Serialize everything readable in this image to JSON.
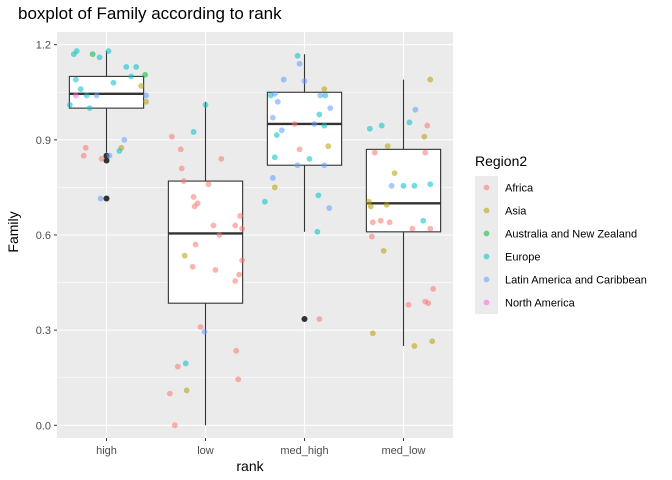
{
  "chart_data": {
    "type": "boxplot",
    "title": "boxplot of Family according to rank",
    "xlabel": "rank",
    "ylabel": "Family",
    "categories": [
      "high",
      "low",
      "med_high",
      "med_low"
    ],
    "yticks": [
      "0.0",
      "0.3",
      "0.6",
      "0.9",
      "1.2"
    ],
    "ylim": [
      -0.04,
      1.24
    ],
    "grid": true,
    "legend": {
      "title": "Region2",
      "position": "right",
      "entries": [
        {
          "name": "Africa",
          "color": "#F8766D"
        },
        {
          "name": "Asia",
          "color": "#B79F00"
        },
        {
          "name": "Australia and New Zealand",
          "color": "#00BA38"
        },
        {
          "name": "Europe",
          "color": "#00BFC4"
        },
        {
          "name": "Latin America and Caribbean",
          "color": "#619CFF"
        },
        {
          "name": "North America",
          "color": "#F564E3"
        }
      ]
    },
    "boxes": [
      {
        "category": "high",
        "whisker_low": 0.86,
        "q1": 1.0,
        "median": 1.045,
        "q3": 1.1,
        "whisker_high": 1.18,
        "outliers": [
          0.85,
          0.835,
          0.715
        ]
      },
      {
        "category": "low",
        "whisker_low": 0.0,
        "q1": 0.385,
        "median": 0.605,
        "q3": 0.77,
        "whisker_high": 1.02,
        "outliers": []
      },
      {
        "category": "med_high",
        "whisker_low": 0.61,
        "q1": 0.82,
        "median": 0.95,
        "q3": 1.05,
        "whisker_high": 1.17,
        "outliers": [
          0.335
        ]
      },
      {
        "category": "med_low",
        "whisker_low": 0.25,
        "q1": 0.61,
        "median": 0.7,
        "q3": 0.87,
        "whisker_high": 1.09,
        "outliers": []
      }
    ],
    "points": [
      {
        "category": "high",
        "x_offset": -0.33,
        "y": 1.17,
        "region": "Europe"
      },
      {
        "category": "high",
        "x_offset": -0.3,
        "y": 1.18,
        "region": "Europe"
      },
      {
        "category": "high",
        "x_offset": -0.14,
        "y": 1.17,
        "region": "Australia and New Zealand"
      },
      {
        "category": "high",
        "x_offset": -0.07,
        "y": 1.16,
        "region": "Europe"
      },
      {
        "category": "high",
        "x_offset": 0.02,
        "y": 1.18,
        "region": "Europe"
      },
      {
        "category": "high",
        "x_offset": 0.2,
        "y": 1.13,
        "region": "Europe"
      },
      {
        "category": "high",
        "x_offset": 0.3,
        "y": 1.13,
        "region": "Europe"
      },
      {
        "category": "high",
        "x_offset": 0.39,
        "y": 1.105,
        "region": "Australia and New Zealand"
      },
      {
        "category": "high",
        "x_offset": 0.25,
        "y": 1.1,
        "region": "Europe"
      },
      {
        "category": "high",
        "x_offset": -0.31,
        "y": 1.09,
        "region": "Europe"
      },
      {
        "category": "high",
        "x_offset": 0.07,
        "y": 1.08,
        "region": "Europe"
      },
      {
        "category": "high",
        "x_offset": 0.35,
        "y": 1.07,
        "region": "Asia"
      },
      {
        "category": "high",
        "x_offset": -0.26,
        "y": 1.06,
        "region": "Europe"
      },
      {
        "category": "high",
        "x_offset": -0.2,
        "y": 1.04,
        "region": "Europe"
      },
      {
        "category": "high",
        "x_offset": -0.1,
        "y": 1.04,
        "region": "Latin America and Caribbean"
      },
      {
        "category": "high",
        "x_offset": -0.31,
        "y": 1.04,
        "region": "North America"
      },
      {
        "category": "high",
        "x_offset": 0.4,
        "y": 1.04,
        "region": "Latin America and Caribbean"
      },
      {
        "category": "high",
        "x_offset": -0.37,
        "y": 1.01,
        "region": "Europe"
      },
      {
        "category": "high",
        "x_offset": -0.17,
        "y": 1.0,
        "region": "Europe"
      },
      {
        "category": "high",
        "x_offset": 0.4,
        "y": 1.02,
        "region": "Asia"
      },
      {
        "category": "high",
        "x_offset": 0.18,
        "y": 0.9,
        "region": "Latin America and Caribbean"
      },
      {
        "category": "high",
        "x_offset": -0.21,
        "y": 0.875,
        "region": "Africa"
      },
      {
        "category": "high",
        "x_offset": 0.15,
        "y": 0.875,
        "region": "Asia"
      },
      {
        "category": "high",
        "x_offset": 0.13,
        "y": 0.865,
        "region": "Europe"
      },
      {
        "category": "high",
        "x_offset": -0.23,
        "y": 0.85,
        "region": "Africa"
      },
      {
        "category": "high",
        "x_offset": -0.05,
        "y": 0.84,
        "region": "Africa"
      },
      {
        "category": "high",
        "x_offset": 0.03,
        "y": 0.85,
        "region": "Latin America and Caribbean"
      },
      {
        "category": "high",
        "x_offset": -0.06,
        "y": 0.715,
        "region": "Latin America and Caribbean"
      },
      {
        "category": "low",
        "x_offset": -0.34,
        "y": 0.91,
        "region": "Africa"
      },
      {
        "category": "low",
        "x_offset": -0.12,
        "y": 0.925,
        "region": "Europe"
      },
      {
        "category": "low",
        "x_offset": 0.0,
        "y": 1.01,
        "region": "Europe"
      },
      {
        "category": "low",
        "x_offset": -0.25,
        "y": 0.87,
        "region": "Africa"
      },
      {
        "category": "low",
        "x_offset": 0.16,
        "y": 0.84,
        "region": "Africa"
      },
      {
        "category": "low",
        "x_offset": -0.24,
        "y": 0.81,
        "region": "Africa"
      },
      {
        "category": "low",
        "x_offset": -0.22,
        "y": 0.77,
        "region": "Africa"
      },
      {
        "category": "low",
        "x_offset": 0.03,
        "y": 0.76,
        "region": "Africa"
      },
      {
        "category": "low",
        "x_offset": -0.12,
        "y": 0.72,
        "region": "Africa"
      },
      {
        "category": "low",
        "x_offset": -0.08,
        "y": 0.7,
        "region": "Africa"
      },
      {
        "category": "low",
        "x_offset": -0.11,
        "y": 0.69,
        "region": "Africa"
      },
      {
        "category": "low",
        "x_offset": 0.35,
        "y": 0.66,
        "region": "Africa"
      },
      {
        "category": "low",
        "x_offset": 0.08,
        "y": 0.63,
        "region": "Africa"
      },
      {
        "category": "low",
        "x_offset": 0.3,
        "y": 0.63,
        "region": "Africa"
      },
      {
        "category": "low",
        "x_offset": 0.37,
        "y": 0.62,
        "region": "Africa"
      },
      {
        "category": "low",
        "x_offset": 0.14,
        "y": 0.6,
        "region": "Africa"
      },
      {
        "category": "low",
        "x_offset": -0.1,
        "y": 0.57,
        "region": "Africa"
      },
      {
        "category": "low",
        "x_offset": -0.21,
        "y": 0.535,
        "region": "Asia"
      },
      {
        "category": "low",
        "x_offset": 0.37,
        "y": 0.52,
        "region": "Africa"
      },
      {
        "category": "low",
        "x_offset": -0.13,
        "y": 0.5,
        "region": "Africa"
      },
      {
        "category": "low",
        "x_offset": 0.1,
        "y": 0.49,
        "region": "Africa"
      },
      {
        "category": "low",
        "x_offset": 0.34,
        "y": 0.475,
        "region": "Africa"
      },
      {
        "category": "low",
        "x_offset": 0.3,
        "y": 0.455,
        "region": "Africa"
      },
      {
        "category": "low",
        "x_offset": -0.05,
        "y": 0.31,
        "region": "Africa"
      },
      {
        "category": "low",
        "x_offset": -0.01,
        "y": 0.295,
        "region": "Latin America and Caribbean"
      },
      {
        "category": "low",
        "x_offset": 0.31,
        "y": 0.235,
        "region": "Africa"
      },
      {
        "category": "low",
        "x_offset": -0.2,
        "y": 0.195,
        "region": "Europe"
      },
      {
        "category": "low",
        "x_offset": -0.28,
        "y": 0.185,
        "region": "Africa"
      },
      {
        "category": "low",
        "x_offset": 0.33,
        "y": 0.145,
        "region": "Africa"
      },
      {
        "category": "low",
        "x_offset": -0.19,
        "y": 0.11,
        "region": "Asia"
      },
      {
        "category": "low",
        "x_offset": -0.36,
        "y": 0.1,
        "region": "Africa"
      },
      {
        "category": "low",
        "x_offset": -0.31,
        "y": 0.0,
        "region": "Africa"
      },
      {
        "category": "med_high",
        "x_offset": -0.05,
        "y": 1.14,
        "region": "Latin America and Caribbean"
      },
      {
        "category": "med_high",
        "x_offset": -0.07,
        "y": 1.165,
        "region": "Europe"
      },
      {
        "category": "med_high",
        "x_offset": -0.21,
        "y": 1.09,
        "region": "Latin America and Caribbean"
      },
      {
        "category": "med_high",
        "x_offset": 0.0,
        "y": 1.085,
        "region": "Latin America and Caribbean"
      },
      {
        "category": "med_high",
        "x_offset": -0.34,
        "y": 1.04,
        "region": "Europe"
      },
      {
        "category": "med_high",
        "x_offset": -0.3,
        "y": 1.045,
        "region": "Latin America and Caribbean"
      },
      {
        "category": "med_high",
        "x_offset": -0.27,
        "y": 1.02,
        "region": "Latin America and Caribbean"
      },
      {
        "category": "med_high",
        "x_offset": 0.16,
        "y": 1.04,
        "region": "Latin America and Caribbean"
      },
      {
        "category": "med_high",
        "x_offset": 0.2,
        "y": 1.06,
        "region": "Asia"
      },
      {
        "category": "med_high",
        "x_offset": 0.21,
        "y": 1.04,
        "region": "Europe"
      },
      {
        "category": "med_high",
        "x_offset": 0.26,
        "y": 1.0,
        "region": "Latin America and Caribbean"
      },
      {
        "category": "med_high",
        "x_offset": 0.15,
        "y": 0.98,
        "region": "Europe"
      },
      {
        "category": "med_high",
        "x_offset": -0.32,
        "y": 0.97,
        "region": "Latin America and Caribbean"
      },
      {
        "category": "med_high",
        "x_offset": 0.1,
        "y": 0.95,
        "region": "Latin America and Caribbean"
      },
      {
        "category": "med_high",
        "x_offset": -0.1,
        "y": 0.95,
        "region": "Africa"
      },
      {
        "category": "med_high",
        "x_offset": 0.2,
        "y": 0.945,
        "region": "Europe"
      },
      {
        "category": "med_high",
        "x_offset": -0.23,
        "y": 0.93,
        "region": "Latin America and Caribbean"
      },
      {
        "category": "med_high",
        "x_offset": -0.28,
        "y": 0.915,
        "region": "Europe"
      },
      {
        "category": "med_high",
        "x_offset": 0.24,
        "y": 0.88,
        "region": "Asia"
      },
      {
        "category": "med_high",
        "x_offset": -0.05,
        "y": 0.87,
        "region": "Africa"
      },
      {
        "category": "med_high",
        "x_offset": -0.3,
        "y": 0.845,
        "region": "Europe"
      },
      {
        "category": "med_high",
        "x_offset": 0.05,
        "y": 0.84,
        "region": "Europe"
      },
      {
        "category": "med_high",
        "x_offset": -0.07,
        "y": 0.82,
        "region": "Latin America and Caribbean"
      },
      {
        "category": "med_high",
        "x_offset": 0.2,
        "y": 0.82,
        "region": "Latin America and Caribbean"
      },
      {
        "category": "med_high",
        "x_offset": -0.32,
        "y": 0.78,
        "region": "Latin America and Caribbean"
      },
      {
        "category": "med_high",
        "x_offset": -0.3,
        "y": 0.75,
        "region": "Asia"
      },
      {
        "category": "med_high",
        "x_offset": 0.14,
        "y": 0.725,
        "region": "Europe"
      },
      {
        "category": "med_high",
        "x_offset": -0.4,
        "y": 0.705,
        "region": "Europe"
      },
      {
        "category": "med_high",
        "x_offset": 0.25,
        "y": 0.685,
        "region": "Latin America and Caribbean"
      },
      {
        "category": "med_high",
        "x_offset": 0.13,
        "y": 0.61,
        "region": "Europe"
      },
      {
        "category": "med_high",
        "x_offset": 0.15,
        "y": 0.335,
        "region": "Africa"
      },
      {
        "category": "med_low",
        "x_offset": -0.34,
        "y": 0.935,
        "region": "Europe"
      },
      {
        "category": "med_low",
        "x_offset": -0.22,
        "y": 0.945,
        "region": "Europe"
      },
      {
        "category": "med_low",
        "x_offset": 0.06,
        "y": 0.955,
        "region": "Europe"
      },
      {
        "category": "med_low",
        "x_offset": 0.24,
        "y": 0.945,
        "region": "Africa"
      },
      {
        "category": "med_low",
        "x_offset": 0.12,
        "y": 0.995,
        "region": "Latin America and Caribbean"
      },
      {
        "category": "med_low",
        "x_offset": 0.27,
        "y": 1.09,
        "region": "Asia"
      },
      {
        "category": "med_low",
        "x_offset": 0.21,
        "y": 0.91,
        "region": "Asia"
      },
      {
        "category": "med_low",
        "x_offset": -0.29,
        "y": 0.86,
        "region": "Africa"
      },
      {
        "category": "med_low",
        "x_offset": -0.16,
        "y": 0.88,
        "region": "Asia"
      },
      {
        "category": "med_low",
        "x_offset": 0.22,
        "y": 0.86,
        "region": "Africa"
      },
      {
        "category": "med_low",
        "x_offset": -0.09,
        "y": 0.795,
        "region": "Asia"
      },
      {
        "category": "med_low",
        "x_offset": -0.12,
        "y": 0.755,
        "region": "Latin America and Caribbean"
      },
      {
        "category": "med_low",
        "x_offset": 0.0,
        "y": 0.755,
        "region": "Europe"
      },
      {
        "category": "med_low",
        "x_offset": 0.11,
        "y": 0.755,
        "region": "Europe"
      },
      {
        "category": "med_low",
        "x_offset": 0.27,
        "y": 0.76,
        "region": "Europe"
      },
      {
        "category": "med_low",
        "x_offset": -0.35,
        "y": 0.705,
        "region": "Asia"
      },
      {
        "category": "med_low",
        "x_offset": -0.33,
        "y": 0.69,
        "region": "Asia"
      },
      {
        "category": "med_low",
        "x_offset": -0.17,
        "y": 0.695,
        "region": "Asia"
      },
      {
        "category": "med_low",
        "x_offset": -0.31,
        "y": 0.64,
        "region": "Africa"
      },
      {
        "category": "med_low",
        "x_offset": -0.23,
        "y": 0.645,
        "region": "Africa"
      },
      {
        "category": "med_low",
        "x_offset": -0.14,
        "y": 0.64,
        "region": "Africa"
      },
      {
        "category": "med_low",
        "x_offset": 0.2,
        "y": 0.645,
        "region": "Europe"
      },
      {
        "category": "med_low",
        "x_offset": 0.09,
        "y": 0.62,
        "region": "Africa"
      },
      {
        "category": "med_low",
        "x_offset": 0.27,
        "y": 0.62,
        "region": "Africa"
      },
      {
        "category": "med_low",
        "x_offset": -0.32,
        "y": 0.595,
        "region": "Africa"
      },
      {
        "category": "med_low",
        "x_offset": -0.2,
        "y": 0.55,
        "region": "Asia"
      },
      {
        "category": "med_low",
        "x_offset": 0.3,
        "y": 0.43,
        "region": "Africa"
      },
      {
        "category": "med_low",
        "x_offset": 0.22,
        "y": 0.39,
        "region": "Africa"
      },
      {
        "category": "med_low",
        "x_offset": 0.25,
        "y": 0.385,
        "region": "Africa"
      },
      {
        "category": "med_low",
        "x_offset": 0.05,
        "y": 0.38,
        "region": "Africa"
      },
      {
        "category": "med_low",
        "x_offset": -0.31,
        "y": 0.29,
        "region": "Asia"
      },
      {
        "category": "med_low",
        "x_offset": 0.29,
        "y": 0.265,
        "region": "Asia"
      },
      {
        "category": "med_low",
        "x_offset": 0.11,
        "y": 0.25,
        "region": "Asia"
      }
    ]
  }
}
